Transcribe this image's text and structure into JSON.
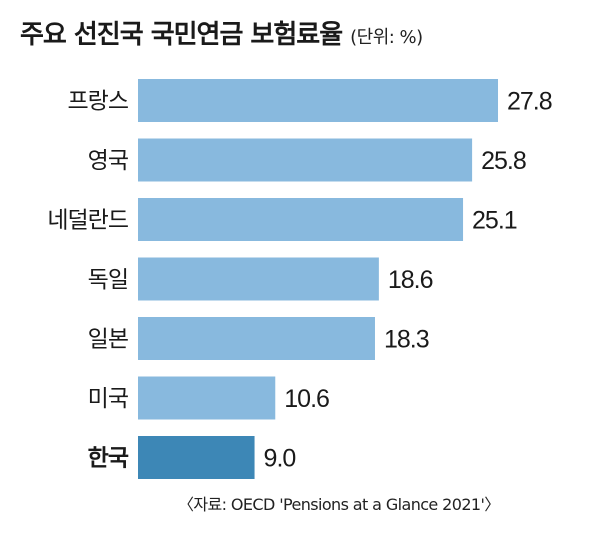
{
  "title": "주요 선진국 국민연금 보험료율",
  "unit": "(단위: %)",
  "source": "〈자료: OECD 'Pensions at a Glance 2021'〉",
  "colors": {
    "bar": "#88b9de",
    "highlight": "#3d87b6"
  },
  "chart_data": {
    "type": "bar",
    "orientation": "horizontal",
    "categories": [
      "프랑스",
      "영국",
      "네덜란드",
      "독일",
      "일본",
      "미국",
      "한국"
    ],
    "values": [
      27.8,
      25.8,
      25.1,
      18.6,
      18.3,
      10.6,
      9.0
    ],
    "value_labels": [
      "27.8",
      "25.8",
      "25.1",
      "18.6",
      "18.3",
      "10.6",
      "9.0"
    ],
    "highlight": "한국",
    "title": "주요 선진국 국민연금 보험료율",
    "xlim": [
      0,
      30
    ],
    "grid": false,
    "legend": "none"
  }
}
